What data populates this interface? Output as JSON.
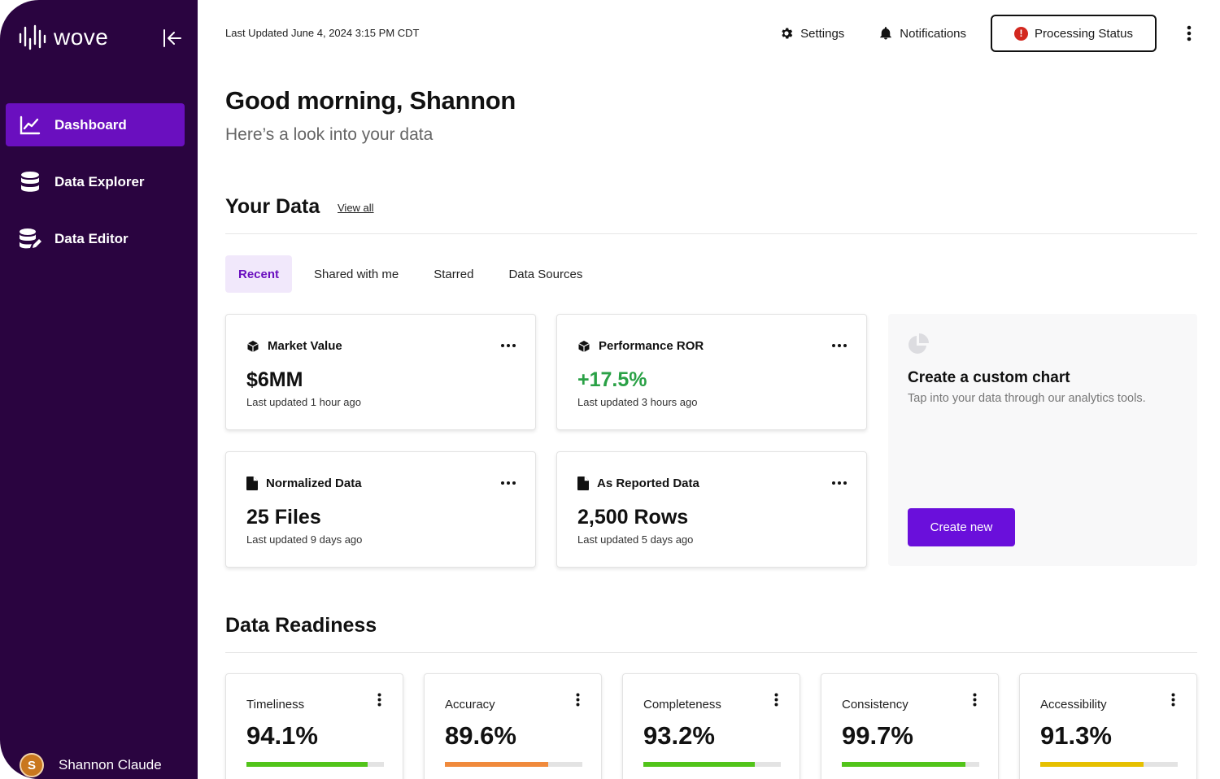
{
  "brand": {
    "name": "wove"
  },
  "sidebar": {
    "items": [
      {
        "label": "Dashboard",
        "icon": "line-chart-icon",
        "active": true
      },
      {
        "label": "Data Explorer",
        "icon": "database-icon",
        "active": false
      },
      {
        "label": "Data Editor",
        "icon": "database-edit-icon",
        "active": false
      }
    ],
    "user": {
      "initial": "S",
      "name": "Shannon Claude"
    }
  },
  "topbar": {
    "last_updated": "Last Updated June 4, 2024 3:15 PM CDT",
    "settings_label": "Settings",
    "notifications_label": "Notifications",
    "processing_label": "Processing Status",
    "processing_alert": "!"
  },
  "greeting": {
    "title": "Good morning, Shannon",
    "subtitle": "Here’s a look into your data"
  },
  "your_data": {
    "title": "Your Data",
    "view_all": "View all",
    "tabs": [
      {
        "label": "Recent",
        "active": true
      },
      {
        "label": "Shared with me",
        "active": false
      },
      {
        "label": "Starred",
        "active": false
      },
      {
        "label": "Data Sources",
        "active": false
      }
    ],
    "cards": [
      {
        "title": "Market Value",
        "value": "$6MM",
        "updated": "Last updated 1 hour ago",
        "icon": "cube-icon"
      },
      {
        "title": "Performance ROR",
        "value": "+17.5%",
        "updated": "Last updated 3 hours ago",
        "icon": "cube-icon"
      },
      {
        "title": "Normalized Data",
        "value": "25 Files",
        "updated": "Last updated 9 days ago",
        "icon": "file-icon"
      },
      {
        "title": "As Reported Data",
        "value": "2,500 Rows",
        "updated": "Last updated 5 days ago",
        "icon": "file-icon"
      }
    ],
    "custom_chart": {
      "title": "Create a custom chart",
      "subtitle": "Tap into your data through our analytics tools.",
      "button": "Create new"
    }
  },
  "readiness": {
    "title": "Data Readiness",
    "metrics": [
      {
        "label": "Timeliness",
        "value": "94.1%",
        "progress": 0.88,
        "color": "#52c41a"
      },
      {
        "label": "Accuracy",
        "value": "89.6%",
        "progress": 0.75,
        "color": "#f08a3c"
      },
      {
        "label": "Completeness",
        "value": "93.2%",
        "progress": 0.81,
        "color": "#52c41a"
      },
      {
        "label": "Consistency",
        "value": "99.7%",
        "progress": 0.9,
        "color": "#52c41a"
      },
      {
        "label": "Accessibility",
        "value": "91.3%",
        "progress": 0.75,
        "color": "#e6c000"
      }
    ]
  },
  "colors": {
    "sidebar_bg": "#2a0440",
    "accent": "#6a0fbf",
    "positive": "#2aa146",
    "alert": "#d3281f"
  }
}
